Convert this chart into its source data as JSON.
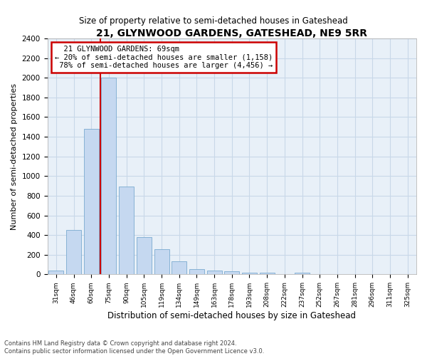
{
  "title": "21, GLYNWOOD GARDENS, GATESHEAD, NE9 5RR",
  "subtitle": "Size of property relative to semi-detached houses in Gateshead",
  "xlabel": "Distribution of semi-detached houses by size in Gateshead",
  "ylabel": "Number of semi-detached properties",
  "property_label": "21 GLYNWOOD GARDENS: 69sqm",
  "annotation_line1": "← 20% of semi-detached houses are smaller (1,158)",
  "annotation_line2": "78% of semi-detached houses are larger (4,456) →",
  "footer1": "Contains HM Land Registry data © Crown copyright and database right 2024.",
  "footer2": "Contains public sector information licensed under the Open Government Licence v3.0.",
  "bins": [
    "31sqm",
    "46sqm",
    "60sqm",
    "75sqm",
    "90sqm",
    "105sqm",
    "119sqm",
    "134sqm",
    "149sqm",
    "163sqm",
    "178sqm",
    "193sqm",
    "208sqm",
    "222sqm",
    "237sqm",
    "252sqm",
    "267sqm",
    "281sqm",
    "296sqm",
    "311sqm",
    "325sqm"
  ],
  "values": [
    40,
    450,
    1480,
    2000,
    890,
    380,
    255,
    130,
    50,
    40,
    30,
    20,
    20,
    0,
    20,
    0,
    0,
    0,
    0,
    0,
    0
  ],
  "property_bin_index": 2,
  "bar_color": "#c5d8f0",
  "bar_edge_color": "#7aaad0",
  "annotation_box_color": "#ffffff",
  "annotation_box_edge": "#cc0000",
  "property_line_color": "#cc0000",
  "grid_color": "#c8d8e8",
  "bg_color": "#e8f0f8",
  "ylim": [
    0,
    2400
  ],
  "yticks": [
    0,
    200,
    400,
    600,
    800,
    1000,
    1200,
    1400,
    1600,
    1800,
    2000,
    2200,
    2400
  ]
}
